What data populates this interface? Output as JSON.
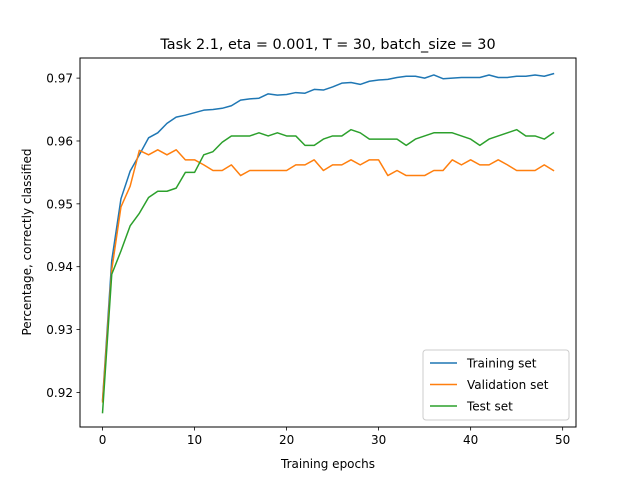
{
  "chart_data": {
    "type": "line",
    "title": "Task 2.1, eta = 0.001, T = 30, batch_size = 30",
    "xlabel": "Training epochs",
    "ylabel": "Percentage, correctly classified",
    "xlim": [
      -2.45,
      51.45
    ],
    "ylim": [
      0.9145,
      0.9732
    ],
    "xticks": [
      0,
      10,
      20,
      30,
      40,
      50
    ],
    "yticks": [
      0.92,
      0.93,
      0.94,
      0.95,
      0.96,
      0.97
    ],
    "ytick_labels": [
      "0.92",
      "0.93",
      "0.94",
      "0.95",
      "0.96",
      "0.97"
    ],
    "xtick_labels": [
      "0",
      "10",
      "20",
      "30",
      "40",
      "50"
    ],
    "grid": false,
    "legend_position": "lower-right",
    "x": [
      0,
      1,
      2,
      3,
      4,
      5,
      6,
      7,
      8,
      9,
      10,
      11,
      12,
      13,
      14,
      15,
      16,
      17,
      18,
      19,
      20,
      21,
      22,
      23,
      24,
      25,
      26,
      27,
      28,
      29,
      30,
      31,
      32,
      33,
      34,
      35,
      36,
      37,
      38,
      39,
      40,
      41,
      42,
      43,
      44,
      45,
      46,
      47,
      48,
      49
    ],
    "series": [
      {
        "name": "Training set",
        "color": "#1f77b4",
        "values": [
          0.9188,
          0.941,
          0.9508,
          0.9552,
          0.9578,
          0.9605,
          0.9613,
          0.9628,
          0.9638,
          0.9641,
          0.9645,
          0.9649,
          0.965,
          0.9652,
          0.9656,
          0.9665,
          0.9667,
          0.9668,
          0.9675,
          0.9673,
          0.9674,
          0.9677,
          0.9676,
          0.9682,
          0.9681,
          0.9686,
          0.9692,
          0.9693,
          0.969,
          0.9695,
          0.9697,
          0.9698,
          0.9701,
          0.9703,
          0.9703,
          0.97,
          0.9705,
          0.9699,
          0.97,
          0.9701,
          0.9701,
          0.9701,
          0.9705,
          0.9701,
          0.9701,
          0.9703,
          0.9703,
          0.9705,
          0.9703,
          0.9707
        ]
      },
      {
        "name": "Validation set",
        "color": "#ff7f0e",
        "values": [
          0.9185,
          0.9395,
          0.9495,
          0.9528,
          0.9585,
          0.9578,
          0.9586,
          0.9578,
          0.9586,
          0.957,
          0.957,
          0.9562,
          0.9553,
          0.9553,
          0.9562,
          0.9545,
          0.9553,
          0.9553,
          0.9553,
          0.9553,
          0.9553,
          0.9562,
          0.9562,
          0.957,
          0.9553,
          0.9562,
          0.9562,
          0.957,
          0.9562,
          0.957,
          0.957,
          0.9545,
          0.9553,
          0.9545,
          0.9545,
          0.9545,
          0.9553,
          0.9553,
          0.957,
          0.9562,
          0.957,
          0.9562,
          0.9562,
          0.957,
          0.9562,
          0.9553,
          0.9553,
          0.9553,
          0.9562,
          0.9553
        ]
      },
      {
        "name": "Test set",
        "color": "#2ca02c",
        "values": [
          0.9168,
          0.9388,
          0.9425,
          0.9465,
          0.9485,
          0.951,
          0.952,
          0.952,
          0.9525,
          0.955,
          0.955,
          0.9578,
          0.9583,
          0.9598,
          0.9608,
          0.9608,
          0.9608,
          0.9613,
          0.9608,
          0.9613,
          0.9608,
          0.9608,
          0.9593,
          0.9593,
          0.9603,
          0.9608,
          0.9608,
          0.9618,
          0.9613,
          0.9603,
          0.9603,
          0.9603,
          0.9603,
          0.9593,
          0.9603,
          0.9608,
          0.9613,
          0.9613,
          0.9613,
          0.9608,
          0.9603,
          0.9593,
          0.9603,
          0.9608,
          0.9613,
          0.9618,
          0.9608,
          0.9608,
          0.9603,
          0.9613
        ]
      }
    ]
  }
}
